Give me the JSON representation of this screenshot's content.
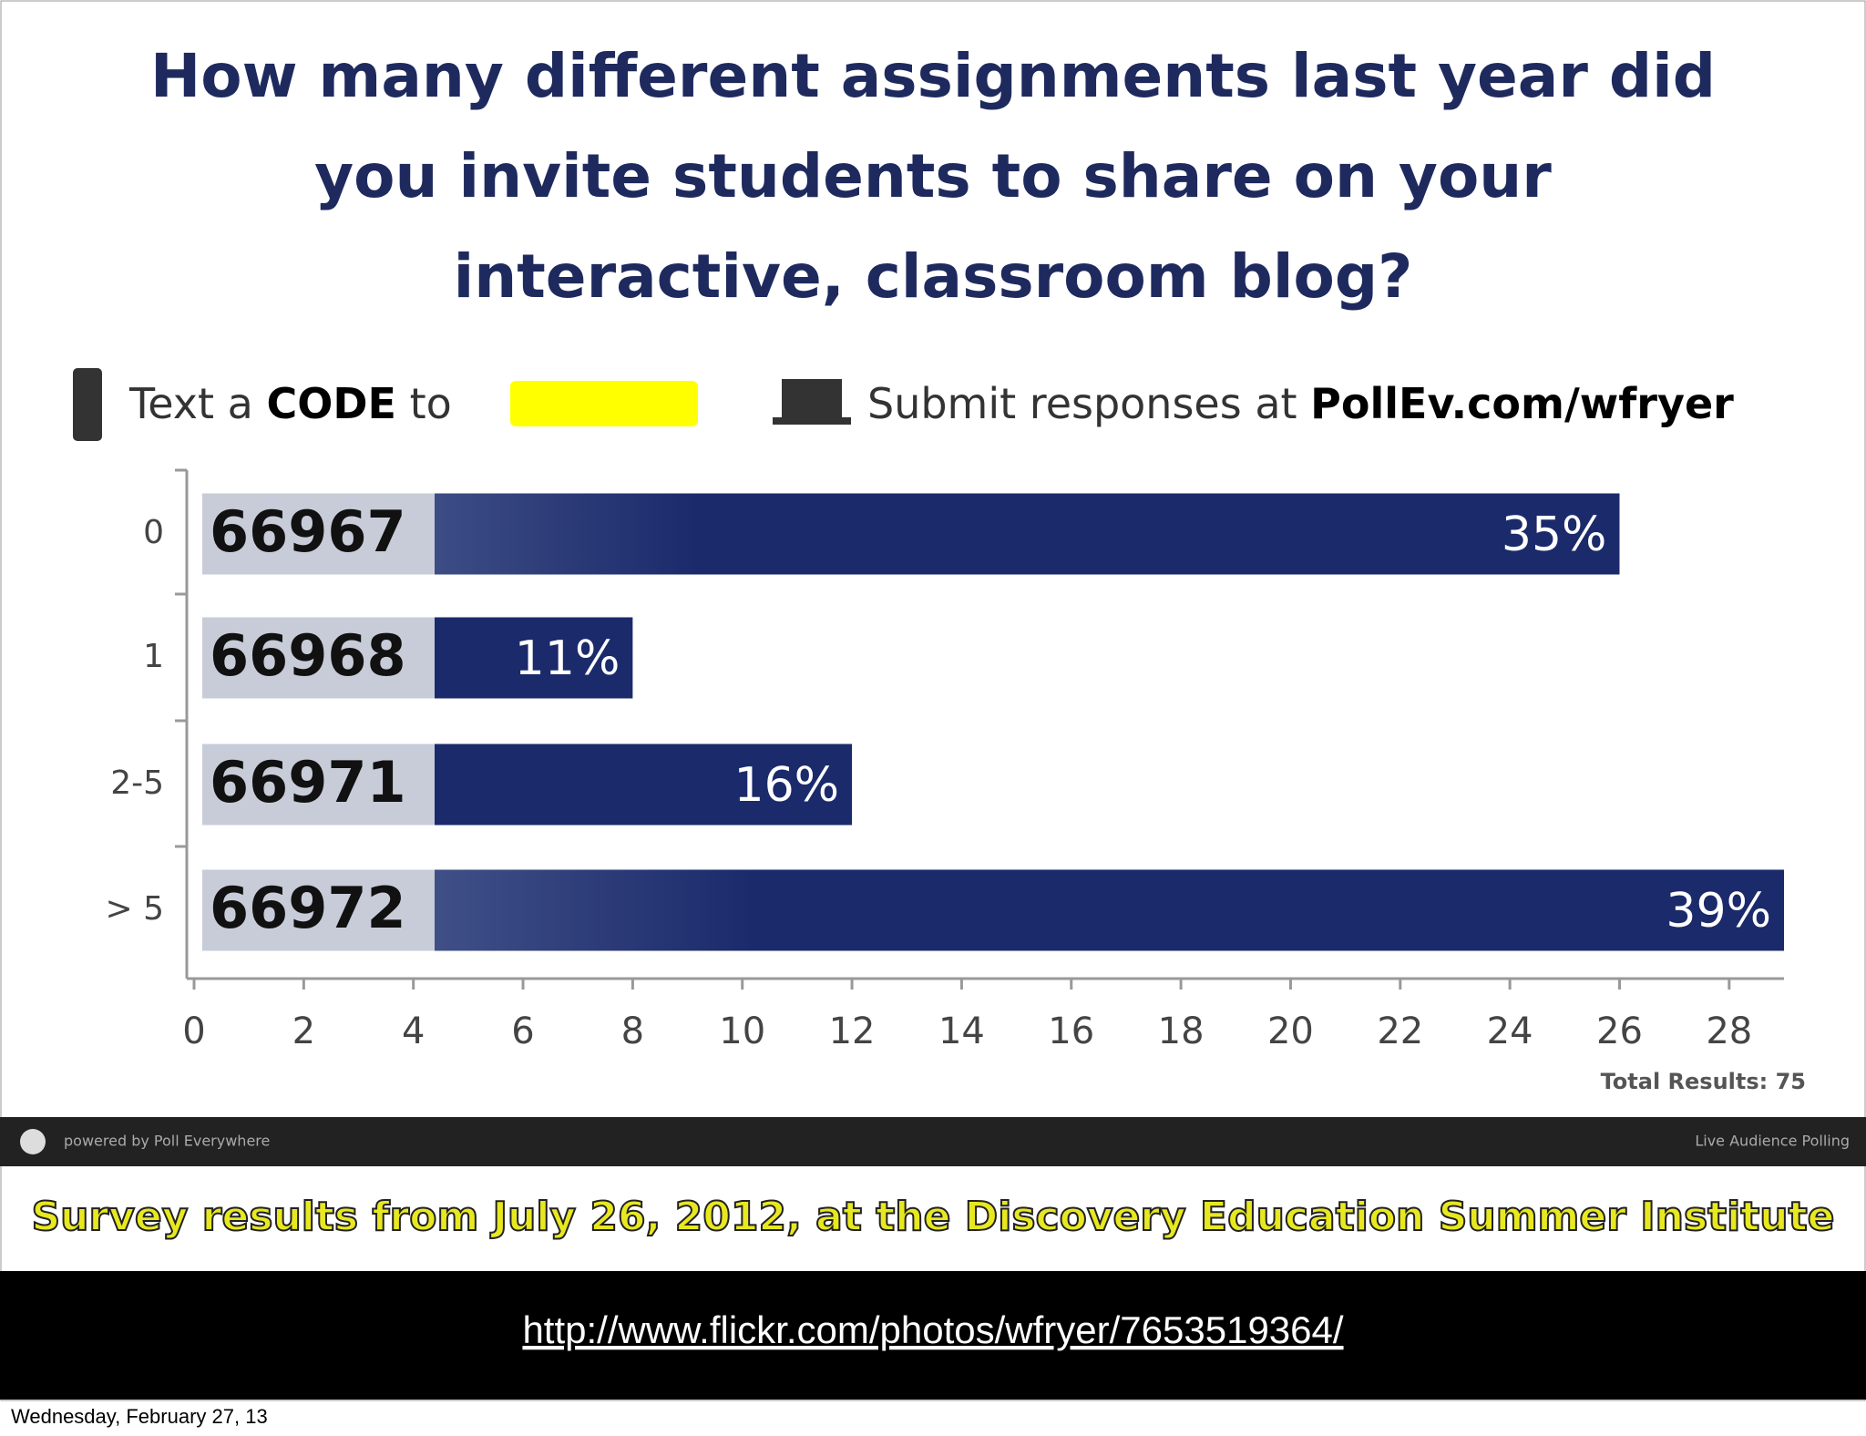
{
  "chart_data": {
    "type": "bar",
    "orientation": "horizontal",
    "title_lines": [
      "How many different assignments last year did",
      "you invite students to share on your",
      "interactive, classroom blog?"
    ],
    "categories": [
      "0",
      "1",
      "2-5",
      "> 5"
    ],
    "codes": [
      "66967",
      "66968",
      "66971",
      "66972"
    ],
    "values": [
      26,
      8,
      12,
      29
    ],
    "value_labels": [
      "35%",
      "11%",
      "16%",
      "39%"
    ],
    "color": "#1b2a6b",
    "xlim": [
      0,
      29
    ],
    "xticks": [
      0,
      2,
      4,
      6,
      8,
      10,
      12,
      14,
      16,
      18,
      20,
      22,
      24,
      26,
      28
    ],
    "total": "Total Results: 75"
  },
  "instructions": {
    "text": "Text a",
    "code": "CODE",
    "to": "to",
    "submit": "Submit responses at",
    "site": "PollEv.com/wfryer"
  },
  "footer_bar": {
    "left": "powered by Poll Everywhere",
    "right": "Live Audience Polling"
  },
  "caption": "Survey results from July 26, 2012, at the Discovery Education Summer Institute",
  "url": "http://www.flickr.com/photos/wfryer/7653519364/",
  "date": "Wednesday, February 27, 13"
}
